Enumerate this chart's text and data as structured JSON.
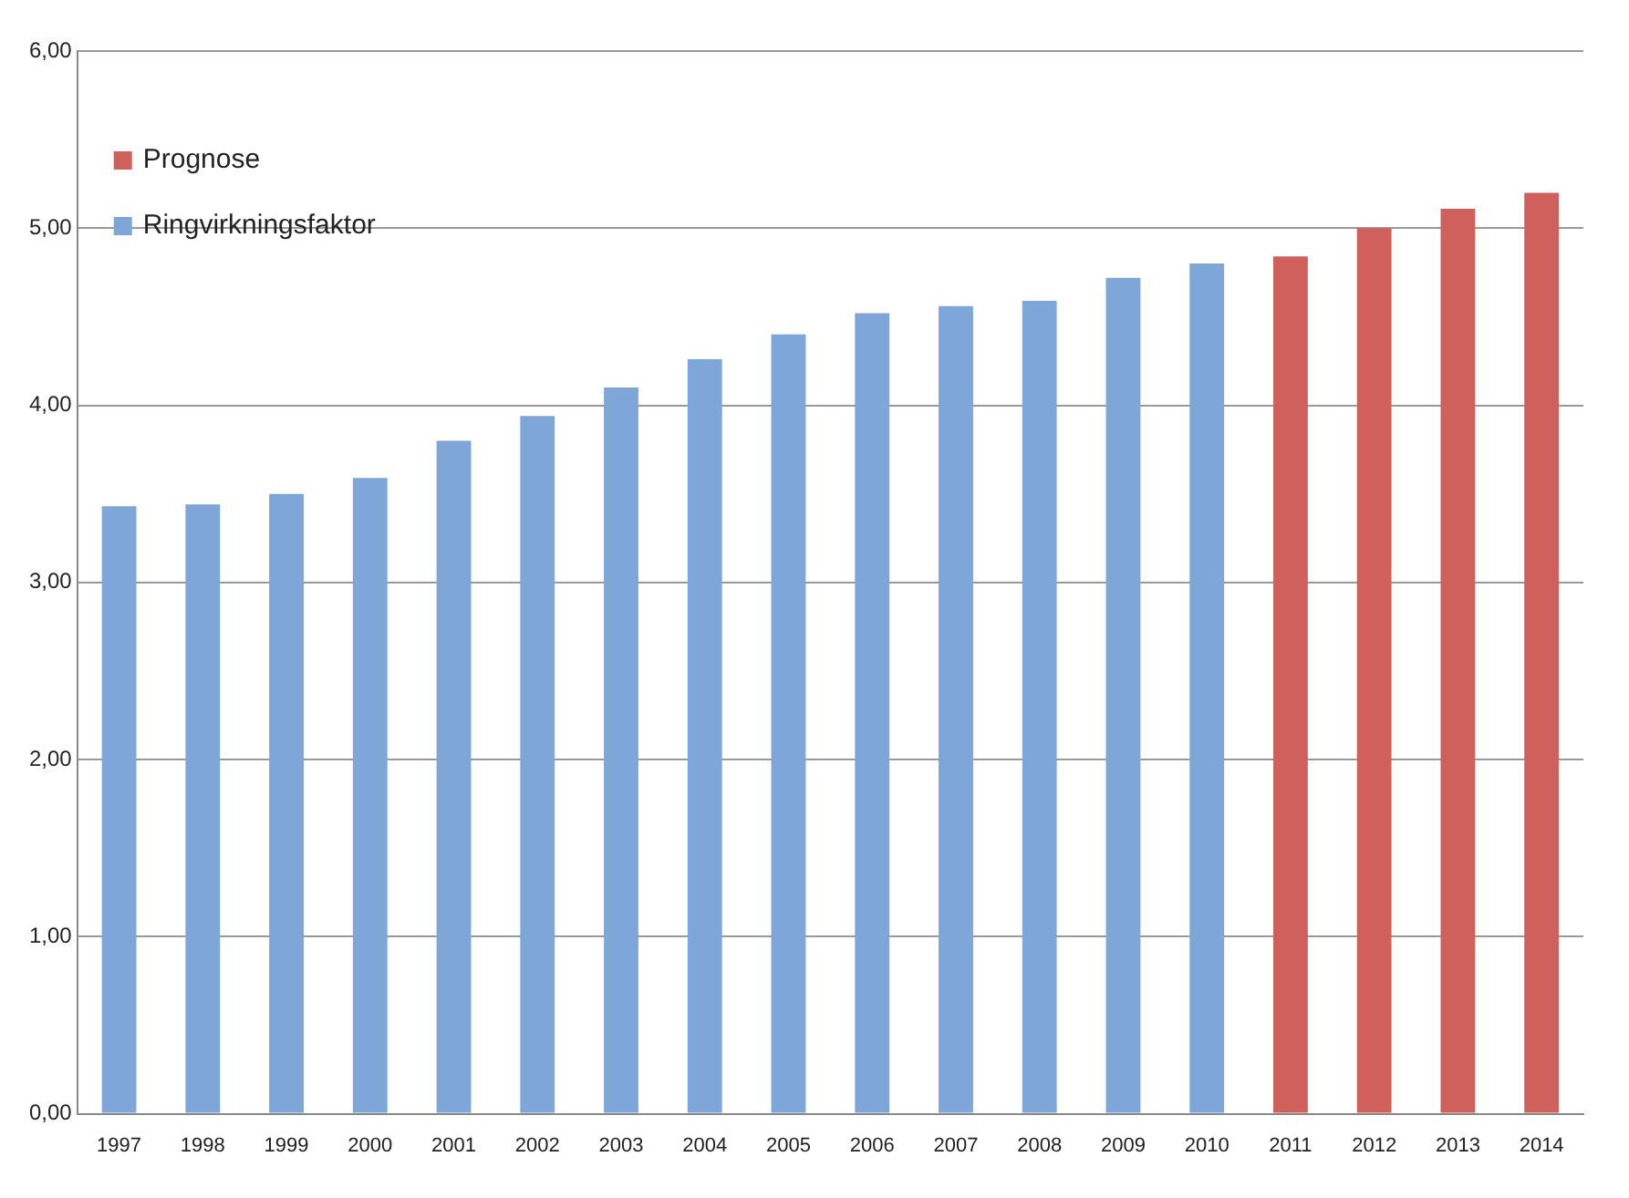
{
  "chart_data": {
    "type": "bar",
    "categories": [
      "1997",
      "1998",
      "1999",
      "2000",
      "2001",
      "2002",
      "2003",
      "2004",
      "2005",
      "2006",
      "2007",
      "2008",
      "2009",
      "2010",
      "2011",
      "2012",
      "2013",
      "2014"
    ],
    "series": [
      {
        "name": "Prognose",
        "color": "#d0605c",
        "values": [
          null,
          null,
          null,
          null,
          null,
          null,
          null,
          null,
          null,
          null,
          null,
          null,
          null,
          null,
          4.84,
          5.0,
          5.11,
          5.2
        ]
      },
      {
        "name": "Ringvirkningsfaktor",
        "color": "#7ea6d9",
        "values": [
          3.43,
          3.44,
          3.5,
          3.59,
          3.8,
          3.94,
          4.1,
          4.26,
          4.4,
          4.52,
          4.56,
          4.59,
          4.72,
          4.8,
          null,
          null,
          null,
          null
        ]
      }
    ],
    "ylim": [
      0,
      6
    ],
    "yticks": [
      {
        "value": 0,
        "label": "0,00"
      },
      {
        "value": 1,
        "label": "1,00"
      },
      {
        "value": 2,
        "label": "2,00"
      },
      {
        "value": 3,
        "label": "3,00"
      },
      {
        "value": 4,
        "label": "4,00"
      },
      {
        "value": 5,
        "label": "5,00"
      },
      {
        "value": 6,
        "label": "6,00"
      }
    ],
    "grid": "y",
    "legend": "top left"
  }
}
